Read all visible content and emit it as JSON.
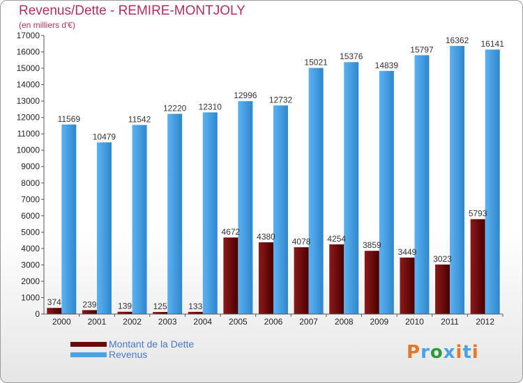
{
  "chart_data": {
    "type": "bar",
    "title": "Revenus/Dette - REMIRE-MONTJOLY",
    "subtitle": "(en milliers d'€)",
    "categories": [
      "2000",
      "2001",
      "2002",
      "2003",
      "2004",
      "2005",
      "2006",
      "2007",
      "2008",
      "2009",
      "2010",
      "2011",
      "2012"
    ],
    "series": [
      {
        "name": "Montant de la Dette",
        "color": "#6b0a0a",
        "values": [
          374,
          239,
          139,
          125,
          133,
          4672,
          4380,
          4078,
          4254,
          3859,
          3449,
          3023,
          5793
        ]
      },
      {
        "name": "Revenus",
        "color": "#4aa3e6",
        "values": [
          11569,
          10479,
          11542,
          12220,
          12310,
          12996,
          12732,
          15021,
          15376,
          14839,
          15797,
          16362,
          16141
        ]
      }
    ],
    "ylim": [
      0,
      17000
    ],
    "ytick_step": 1000,
    "grid": false,
    "legend_position": "bottom-left"
  },
  "logo": {
    "text": "Proxiti",
    "colors": [
      "#e87722",
      "#4aa3e6",
      "#2e9a3e",
      "#4aa3e6",
      "#e87722",
      "#4aa3e6",
      "#e87722"
    ]
  }
}
